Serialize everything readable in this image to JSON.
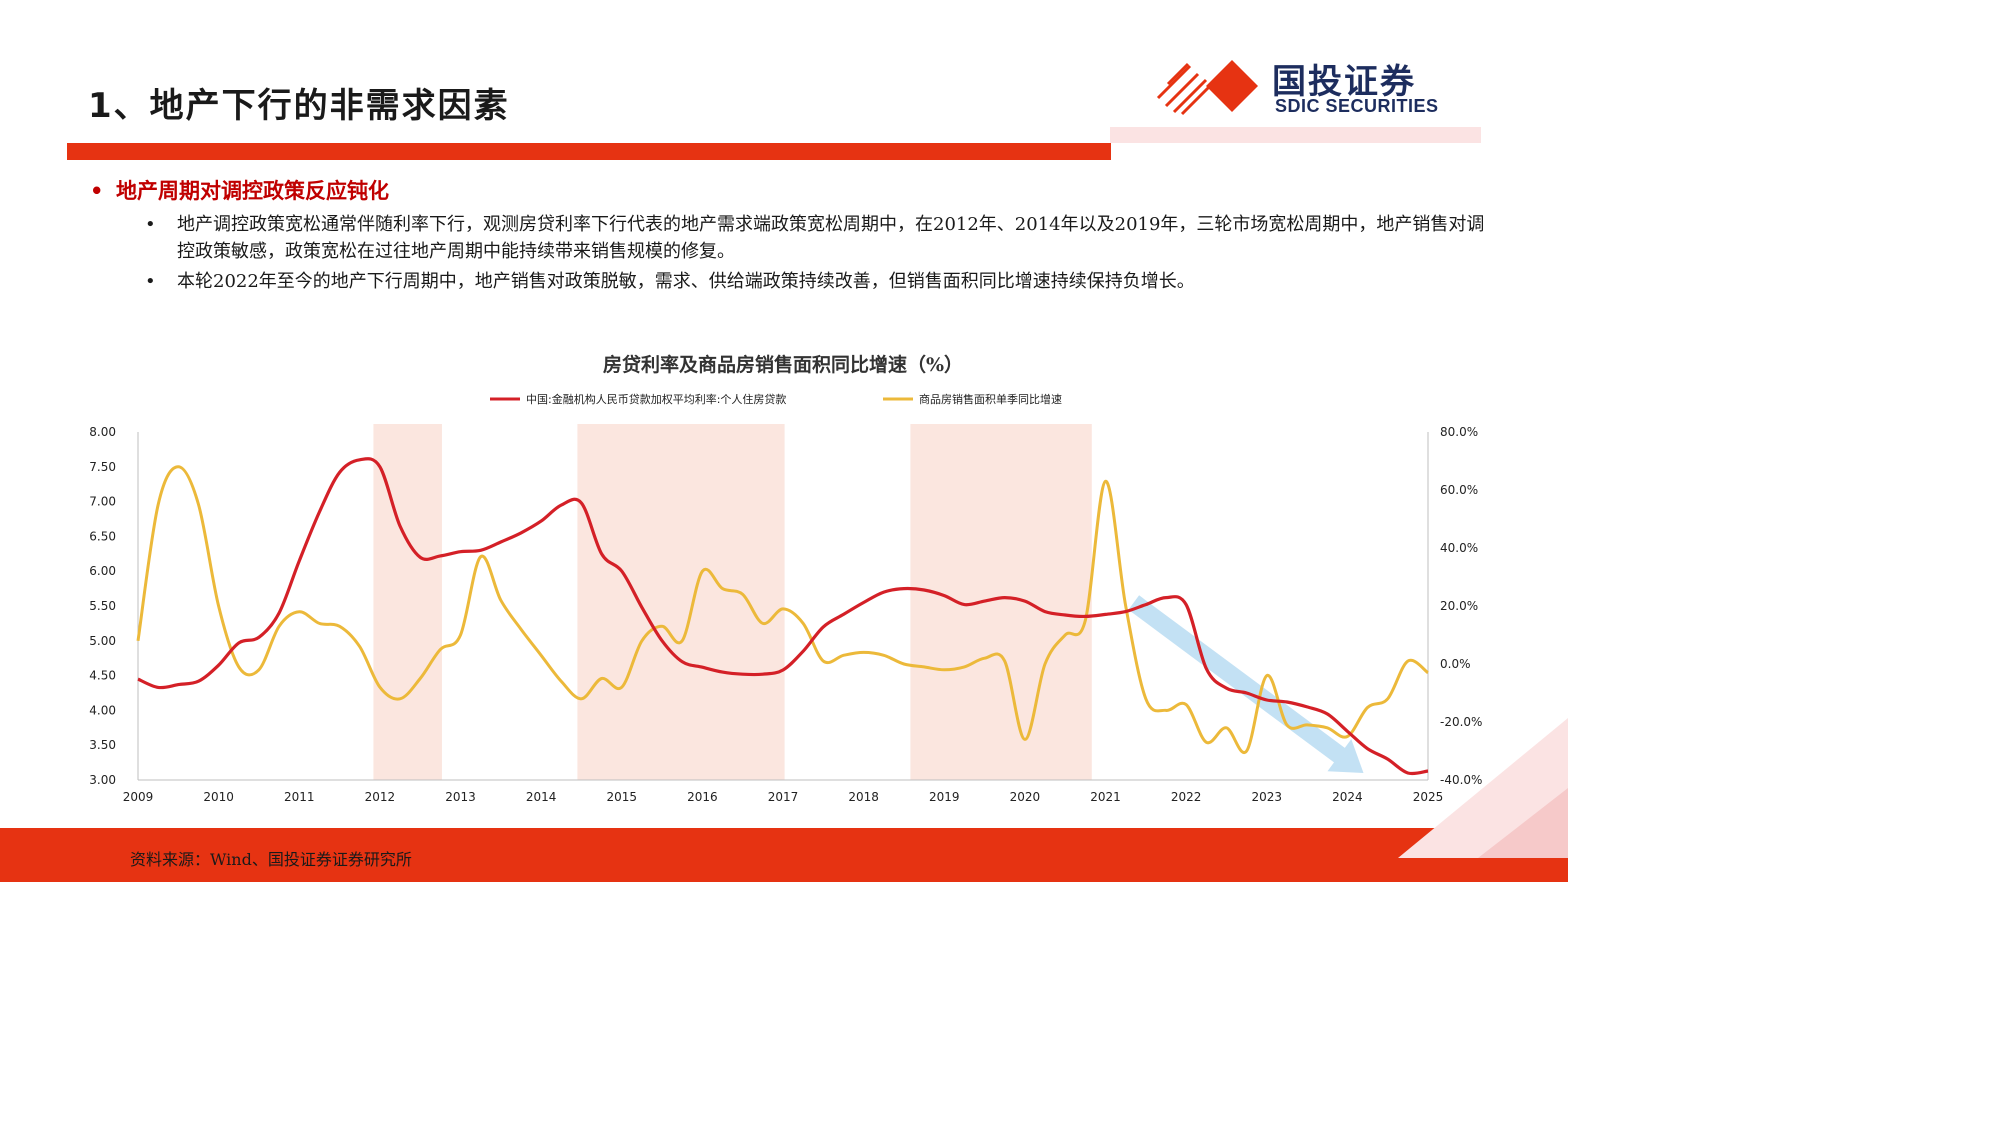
{
  "header": {
    "title": "1、地产下行的非需求因素",
    "logo_cn": "国投证券",
    "logo_en": "SDIC SECURITIES"
  },
  "section": {
    "bullet": "•",
    "heading": "地产周期对调控政策反应钝化",
    "points": [
      "地产调控政策宽松通常伴随利率下行，观测房贷利率下行代表的地产需求端政策宽松周期中，在2012年、2014年以及2019年，三轮市场宽松周期中，地产销售对调控政策敏感，政策宽松在过往地产周期中能持续带来销售规模的修复。",
      "本轮2022年至今的地产下行周期中，地产销售对政策脱敏，需求、供给端政策持续改善，但销售面积同比增速持续保持负增长。"
    ],
    "point_bullet": "•"
  },
  "footer": {
    "source": "资料来源：Wind、国投证券证券研究所"
  },
  "colors": {
    "brand_red": "#e63312",
    "navy": "#1d2d5e",
    "series_red": "#d42027",
    "series_yellow": "#ecb93a",
    "shade": "#fbe6df",
    "arrow": "#b9dcf2"
  },
  "chart_data": {
    "type": "line",
    "title": "房贷利率及商品房销售面积同比增速（%）",
    "x_ticks": [
      "2009",
      "2010",
      "2011",
      "2012",
      "2013",
      "2014",
      "2015",
      "2016",
      "2017",
      "2018",
      "2019",
      "2020",
      "2021",
      "2022",
      "2023",
      "2024",
      "2025"
    ],
    "xlim": [
      2009,
      2025
    ],
    "y_left": {
      "ticks": [
        "3.00",
        "3.50",
        "4.00",
        "4.50",
        "5.00",
        "5.50",
        "6.00",
        "6.50",
        "7.00",
        "7.50",
        "8.00"
      ],
      "lim": [
        3,
        8
      ]
    },
    "y_right": {
      "ticks": [
        "-40.0%",
        "-20.0%",
        "0.0%",
        "20.0%",
        "40.0%",
        "60.0%",
        "80.0%"
      ],
      "lim": [
        -40,
        80
      ]
    },
    "shaded_periods": [
      [
        2011.92,
        2012.77
      ],
      [
        2014.45,
        2017.02
      ],
      [
        2018.58,
        2020.83
      ]
    ],
    "grid": false,
    "legend_position": "top-center",
    "series": [
      {
        "name": "中国:金融机构人民币贷款加权平均利率:个人住房贷款",
        "axis": "left",
        "x": [
          2009.0,
          2009.25,
          2009.5,
          2009.75,
          2010.0,
          2010.25,
          2010.5,
          2010.75,
          2011.0,
          2011.25,
          2011.5,
          2011.75,
          2012.0,
          2012.25,
          2012.5,
          2012.75,
          2013.0,
          2013.25,
          2013.5,
          2013.75,
          2014.0,
          2014.25,
          2014.5,
          2014.75,
          2015.0,
          2015.25,
          2015.5,
          2015.75,
          2016.0,
          2016.25,
          2016.5,
          2016.75,
          2017.0,
          2017.25,
          2017.5,
          2017.75,
          2018.0,
          2018.25,
          2018.5,
          2018.75,
          2019.0,
          2019.25,
          2019.5,
          2019.75,
          2020.0,
          2020.25,
          2020.5,
          2020.75,
          2021.0,
          2021.25,
          2021.5,
          2021.75,
          2022.0,
          2022.25,
          2022.5,
          2022.75,
          2023.0,
          2023.25,
          2023.5,
          2023.75,
          2024.0,
          2024.25,
          2024.5,
          2024.75,
          2025.0
        ],
        "values": [
          4.45,
          4.33,
          4.37,
          4.42,
          4.65,
          4.97,
          5.05,
          5.4,
          6.15,
          6.85,
          7.42,
          7.6,
          7.5,
          6.65,
          6.2,
          6.22,
          6.28,
          6.3,
          6.42,
          6.55,
          6.72,
          6.95,
          6.98,
          6.25,
          6.0,
          5.48,
          5.0,
          4.7,
          4.62,
          4.55,
          4.52,
          4.52,
          4.58,
          4.85,
          5.2,
          5.38,
          5.55,
          5.7,
          5.75,
          5.73,
          5.65,
          5.52,
          5.57,
          5.62,
          5.57,
          5.42,
          5.37,
          5.35,
          5.38,
          5.42,
          5.52,
          5.62,
          5.52,
          4.6,
          4.32,
          4.25,
          4.15,
          4.12,
          4.05,
          3.95,
          3.7,
          3.45,
          3.3,
          3.1,
          3.13
        ]
      },
      {
        "name": "商品房销售面积单季同比增速",
        "axis": "right",
        "x": [
          2009.0,
          2009.25,
          2009.5,
          2009.75,
          2010.0,
          2010.25,
          2010.5,
          2010.75,
          2011.0,
          2011.25,
          2011.5,
          2011.75,
          2012.0,
          2012.25,
          2012.5,
          2012.75,
          2013.0,
          2013.25,
          2013.5,
          2013.75,
          2014.0,
          2014.25,
          2014.5,
          2014.75,
          2015.0,
          2015.25,
          2015.5,
          2015.75,
          2016.0,
          2016.25,
          2016.5,
          2016.75,
          2017.0,
          2017.25,
          2017.5,
          2017.75,
          2018.0,
          2018.25,
          2018.5,
          2018.75,
          2019.0,
          2019.25,
          2019.5,
          2019.75,
          2020.0,
          2020.25,
          2020.5,
          2020.75,
          2021.0,
          2021.25,
          2021.5,
          2021.75,
          2022.0,
          2022.25,
          2022.5,
          2022.75,
          2023.0,
          2023.25,
          2023.5,
          2023.75,
          2024.0,
          2024.25,
          2024.5,
          2024.75,
          2025.0
        ],
        "values": [
          8.0,
          55.0,
          68.0,
          55.0,
          20.0,
          -1.0,
          -2.0,
          13.0,
          18.0,
          14.0,
          13.0,
          6.0,
          -8.0,
          -12.0,
          -5.0,
          5.0,
          10.0,
          37.0,
          22.0,
          12.0,
          3.0,
          -6.0,
          -12.0,
          -5.0,
          -8.0,
          8.0,
          13.0,
          8.0,
          32.0,
          26.0,
          24.0,
          14.0,
          19.0,
          14.0,
          1.0,
          3.0,
          4.0,
          3.0,
          0.0,
          -1.0,
          -2.0,
          -1.0,
          2.0,
          1.0,
          -26.0,
          0.0,
          10.0,
          15.0,
          63.0,
          20.0,
          -12.0,
          -16.0,
          -14.0,
          -27.0,
          -22.0,
          -30.0,
          -4.0,
          -21.0,
          -21.0,
          -22.0,
          -25.0,
          -15.0,
          -12.0,
          1.0,
          -3.0
        ]
      }
    ]
  }
}
